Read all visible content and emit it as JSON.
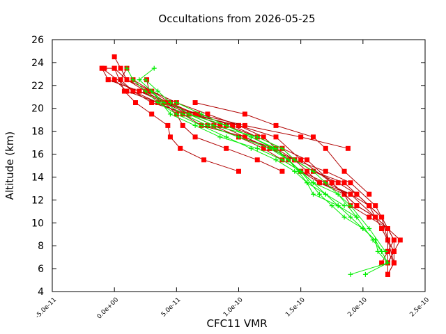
{
  "chart_data": {
    "type": "line",
    "title": "Occultations from 2026-05-25",
    "xlabel": "CFC11 VMR",
    "ylabel": "Altitude (km)",
    "xlim": [
      -5e-11,
      2.5e-10
    ],
    "ylim": [
      4,
      26
    ],
    "x_ticks": [
      "-5.0e-11",
      "0.0e+00",
      "5.0e-11",
      "1.0e-10",
      "1.5e-10",
      "2.0e-10",
      "2.5e-10"
    ],
    "x_tick_values": [
      -5e-11,
      0,
      5e-11,
      1e-10,
      1.5e-10,
      2e-10,
      2.5e-10
    ],
    "y_ticks": [
      "4",
      "6",
      "8",
      "10",
      "12",
      "14",
      "16",
      "18",
      "20",
      "22",
      "24",
      "26"
    ],
    "y_tick_values": [
      4,
      6,
      8,
      10,
      12,
      14,
      16,
      18,
      20,
      22,
      24,
      26
    ],
    "grid": false,
    "legend": "none",
    "colors": {
      "red": "#ff0000",
      "dark_red": "#b00000",
      "green": "#00ee00"
    },
    "series": [
      {
        "style": "red-square",
        "points": [
          [
            2.2e-10,
            5.5
          ],
          [
            2.25e-10,
            6.5
          ],
          [
            2.2e-10,
            7.5
          ],
          [
            2.25e-10,
            8.5
          ],
          [
            2.2e-10,
            9.5
          ],
          [
            2.1e-10,
            11.5
          ],
          [
            1.9e-10,
            13.5
          ],
          [
            1.7e-10,
            14.5
          ],
          [
            1.45e-10,
            15.5
          ],
          [
            1.25e-10,
            16.5
          ],
          [
            1.05e-10,
            17.5
          ],
          [
            8.5e-11,
            18.5
          ],
          [
            6.5e-11,
            19.5
          ],
          [
            4e-11,
            20.5
          ],
          [
            2.5e-11,
            21.5
          ],
          [
            1e-11,
            22.5
          ],
          [
            0,
            23.5
          ]
        ]
      },
      {
        "style": "red-square",
        "points": [
          [
            2.15e-10,
            6.5
          ],
          [
            2.2e-10,
            7.5
          ],
          [
            2.2e-10,
            8.5
          ],
          [
            2.15e-10,
            10.5
          ],
          [
            2.05e-10,
            11.5
          ],
          [
            1.95e-10,
            12.5
          ],
          [
            1.85e-10,
            13.5
          ],
          [
            1.6e-10,
            14.5
          ],
          [
            1.3e-10,
            16.5
          ],
          [
            1e-10,
            17.5
          ],
          [
            7.5e-11,
            18.5
          ],
          [
            5.5e-11,
            19.5
          ],
          [
            3.5e-11,
            20.5
          ],
          [
            1.5e-11,
            21.5
          ],
          [
            -1e-11,
            23.5
          ]
        ]
      },
      {
        "style": "red-square",
        "points": [
          [
            2.25e-10,
            6.5
          ],
          [
            2.25e-10,
            7.5
          ],
          [
            2.2e-10,
            8.5
          ],
          [
            2.2e-10,
            9.5
          ],
          [
            2.1e-10,
            10.5
          ],
          [
            1.95e-10,
            11.5
          ],
          [
            1.85e-10,
            12.5
          ],
          [
            1.75e-10,
            13.5
          ],
          [
            1.55e-10,
            15.5
          ],
          [
            1.35e-10,
            16.5
          ],
          [
            1.15e-10,
            17.5
          ],
          [
            9e-11,
            18.5
          ],
          [
            6e-11,
            19.5
          ],
          [
            4.5e-11,
            20.5
          ],
          [
            3e-11,
            21.5
          ],
          [
            1e-11,
            22.5
          ],
          [
            5e-12,
            23.5
          ],
          [
            0,
            24.5
          ]
        ]
      },
      {
        "style": "red-square",
        "points": [
          [
            2.2e-10,
            6.5
          ],
          [
            2.25e-10,
            7.5
          ],
          [
            2.3e-10,
            8.5
          ],
          [
            2.2e-10,
            9.5
          ],
          [
            2.05e-10,
            10.5
          ],
          [
            1.9e-10,
            11.5
          ],
          [
            1.85e-10,
            12.5
          ],
          [
            1.65e-10,
            13.5
          ],
          [
            1.5e-10,
            14.5
          ],
          [
            1.35e-10,
            15.5
          ],
          [
            1.2e-10,
            16.5
          ],
          [
            1e-10,
            17.5
          ],
          [
            8e-11,
            18.5
          ],
          [
            6e-11,
            19.5
          ],
          [
            4e-11,
            20.5
          ],
          [
            2e-11,
            21.5
          ],
          [
            -5e-12,
            22.5
          ],
          [
            -1e-11,
            23.5
          ]
        ]
      },
      {
        "style": "red-square",
        "points": [
          [
            2.2e-10,
            5.5
          ],
          [
            2.25e-10,
            6.5
          ],
          [
            2.2e-10,
            8.5
          ],
          [
            2.15e-10,
            9.5
          ],
          [
            2.1e-10,
            10.5
          ],
          [
            1.9e-10,
            12.5
          ],
          [
            1.7e-10,
            13.5
          ],
          [
            1.5e-10,
            14.5
          ],
          [
            1.4e-10,
            15.5
          ],
          [
            1.3e-10,
            16.5
          ],
          [
            1.2e-10,
            17.5
          ],
          [
            1e-10,
            18.5
          ],
          [
            6e-11,
            19.5
          ],
          [
            3e-11,
            20.5
          ],
          [
            1.5e-11,
            21.5
          ],
          [
            5e-12,
            22.5
          ],
          [
            1e-11,
            23.5
          ]
        ]
      },
      {
        "style": "red-square",
        "points": [
          [
            2.2e-10,
            6.5
          ],
          [
            2.25e-10,
            7.5
          ],
          [
            2.2e-10,
            8.5
          ],
          [
            2.15e-10,
            9.5
          ],
          [
            2.05e-10,
            11.5
          ],
          [
            1.95e-10,
            12.5
          ],
          [
            1.8e-10,
            13.5
          ],
          [
            1.6e-10,
            14.5
          ],
          [
            1.45e-10,
            15.5
          ],
          [
            1.25e-10,
            16.5
          ],
          [
            1.05e-10,
            17.5
          ],
          [
            7e-11,
            18.5
          ],
          [
            5.5e-11,
            19.5
          ],
          [
            3.5e-11,
            20.5
          ],
          [
            1e-11,
            21.5
          ],
          [
            0,
            22.5
          ]
        ]
      },
      {
        "style": "dark-red-square",
        "points": [
          [
            2.2e-10,
            6.5
          ],
          [
            2.25e-10,
            7.5
          ],
          [
            2.25e-10,
            8.5
          ],
          [
            2.15e-10,
            10.5
          ],
          [
            2.05e-10,
            11.5
          ],
          [
            1.9e-10,
            12.5
          ],
          [
            1.65e-10,
            13.5
          ],
          [
            1.55e-10,
            14.5
          ],
          [
            1.45e-10,
            15.5
          ],
          [
            1.35e-10,
            16.5
          ],
          [
            1.15e-10,
            17.5
          ],
          [
            9.5e-11,
            18.5
          ],
          [
            6.5e-11,
            19.5
          ],
          [
            4.5e-11,
            20.5
          ],
          [
            2e-11,
            21.5
          ],
          [
            -5e-12,
            22.5
          ]
        ]
      },
      {
        "style": "dark-red-square",
        "points": [
          [
            2.2e-10,
            5.5
          ],
          [
            2.2e-10,
            7.5
          ],
          [
            2.2e-10,
            9.5
          ],
          [
            2.1e-10,
            10.5
          ],
          [
            1.95e-10,
            11.5
          ],
          [
            1.75e-10,
            13.5
          ],
          [
            1.5e-10,
            15.5
          ],
          [
            1.3e-10,
            17.5
          ],
          [
            1e-10,
            18.5
          ],
          [
            7.5e-11,
            19.5
          ],
          [
            5e-11,
            20.5
          ],
          [
            3e-11,
            21.5
          ],
          [
            1.5e-11,
            22.5
          ]
        ]
      },
      {
        "style": "dark-red-square",
        "points": [
          [
            1e-10,
            14.5
          ],
          [
            7.2e-11,
            15.5
          ],
          [
            5.3e-11,
            16.5
          ],
          [
            4.5e-11,
            17.5
          ],
          [
            4.3e-11,
            18.5
          ],
          [
            3e-11,
            19.5
          ],
          [
            1.7e-11,
            20.5
          ],
          [
            8e-12,
            21.5
          ],
          [
            0,
            23.5
          ],
          [
            -8e-12,
            23.5
          ]
        ]
      },
      {
        "style": "dark-red-square",
        "points": [
          [
            1.88e-10,
            16.5
          ],
          [
            1.5e-10,
            17.5
          ],
          [
            1.05e-10,
            18.5
          ],
          [
            6.7e-11,
            19.5
          ],
          [
            4.2e-11,
            20.5
          ],
          [
            2.8e-11,
            21.5
          ],
          [
            2.6e-11,
            22.5
          ]
        ]
      },
      {
        "style": "dark-red-square",
        "points": [
          [
            1.35e-10,
            14.5
          ],
          [
            1.15e-10,
            15.5
          ],
          [
            9e-11,
            16.5
          ],
          [
            6.5e-11,
            17.5
          ],
          [
            5.5e-11,
            18.5
          ],
          [
            5e-11,
            19.5
          ],
          [
            4e-11,
            20.5
          ]
        ]
      },
      {
        "style": "dark-red-square",
        "points": [
          [
            2.05e-10,
            12.5
          ],
          [
            1.85e-10,
            14.5
          ],
          [
            1.7e-10,
            16.5
          ],
          [
            1.6e-10,
            17.5
          ],
          [
            1.3e-10,
            18.5
          ],
          [
            1.05e-10,
            19.5
          ],
          [
            6.5e-11,
            20.5
          ]
        ]
      },
      {
        "style": "green-plus",
        "points": [
          [
            1.9e-10,
            5.5
          ],
          [
            2.2e-10,
            6.5
          ],
          [
            2.12e-10,
            7.5
          ],
          [
            2.1e-10,
            8.5
          ],
          [
            2e-10,
            9.5
          ],
          [
            1.85e-10,
            10.5
          ],
          [
            1.75e-10,
            11.5
          ],
          [
            1.65e-10,
            12.5
          ],
          [
            1.5e-10,
            14.5
          ],
          [
            1.4e-10,
            15.5
          ],
          [
            1.25e-10,
            16.5
          ],
          [
            1e-10,
            17.5
          ],
          [
            7.5e-11,
            18.5
          ],
          [
            5.5e-11,
            19.5
          ],
          [
            4e-11,
            20.5
          ],
          [
            3e-11,
            21.5
          ],
          [
            2e-11,
            22.5
          ],
          [
            3.2e-11,
            23.5
          ]
        ]
      },
      {
        "style": "green-plus",
        "points": [
          [
            2.02e-10,
            5.5
          ],
          [
            2.2e-10,
            6.5
          ],
          [
            2.15e-10,
            7.5
          ],
          [
            2.1e-10,
            8.5
          ],
          [
            2e-10,
            9.5
          ],
          [
            1.9e-10,
            10.5
          ],
          [
            1.8e-10,
            11.5
          ],
          [
            1.7e-10,
            12.5
          ],
          [
            1.55e-10,
            13.5
          ],
          [
            1.45e-10,
            14.5
          ],
          [
            1.3e-10,
            15.5
          ],
          [
            1.1e-10,
            16.5
          ],
          [
            9e-11,
            17.5
          ],
          [
            7e-11,
            18.5
          ],
          [
            5e-11,
            19.5
          ],
          [
            3.5e-11,
            20.5
          ],
          [
            2.5e-11,
            21.5
          ],
          [
            1.5e-11,
            22.5
          ],
          [
            1e-11,
            23.5
          ]
        ]
      },
      {
        "style": "green-plus",
        "points": [
          [
            2.15e-10,
            7.5
          ],
          [
            2.08e-10,
            8.5
          ],
          [
            1.95e-10,
            10.5
          ],
          [
            1.8e-10,
            12.5
          ],
          [
            1.6e-10,
            13.5
          ],
          [
            1.5e-10,
            14.5
          ],
          [
            1.35e-10,
            15.5
          ],
          [
            1.15e-10,
            16.5
          ],
          [
            8.5e-11,
            17.5
          ],
          [
            6.5e-11,
            18.5
          ],
          [
            4.5e-11,
            19.5
          ],
          [
            3e-11,
            21.5
          ]
        ]
      },
      {
        "style": "green-plus",
        "points": [
          [
            2.18e-10,
            7.5
          ],
          [
            2.05e-10,
            9.5
          ],
          [
            1.9e-10,
            11.5
          ],
          [
            1.7e-10,
            13.5
          ],
          [
            1.6e-10,
            14.5
          ],
          [
            1.45e-10,
            15.5
          ],
          [
            1.35e-10,
            16.5
          ],
          [
            1.15e-10,
            17.5
          ],
          [
            8e-11,
            18.5
          ],
          [
            6e-11,
            19.5
          ],
          [
            4.5e-11,
            20.5
          ],
          [
            3.5e-11,
            21.5
          ],
          [
            2.5e-11,
            22.5
          ]
        ]
      },
      {
        "style": "green-plus",
        "points": [
          [
            1.95e-10,
            10.5
          ],
          [
            1.8e-10,
            11.5
          ],
          [
            1.6e-10,
            12.5
          ],
          [
            1.55e-10,
            13.5
          ],
          [
            1.48e-10,
            14.5
          ],
          [
            1.4e-10,
            15.5
          ],
          [
            1.28e-10,
            16.5
          ],
          [
            1.1e-10,
            17.5
          ],
          [
            9e-11,
            18.5
          ],
          [
            7e-11,
            19.5
          ],
          [
            5e-11,
            20.5
          ]
        ]
      },
      {
        "style": "green-plus",
        "points": [
          [
            1.85e-10,
            11.5
          ],
          [
            1.7e-10,
            12.5
          ],
          [
            1.6e-10,
            13.5
          ],
          [
            1.5e-10,
            14.5
          ],
          [
            1.4e-10,
            15.5
          ],
          [
            1.3e-10,
            16.5
          ],
          [
            1.1e-10,
            17.5
          ],
          [
            9e-11,
            18.5
          ],
          [
            6e-11,
            19.5
          ]
        ]
      }
    ]
  }
}
